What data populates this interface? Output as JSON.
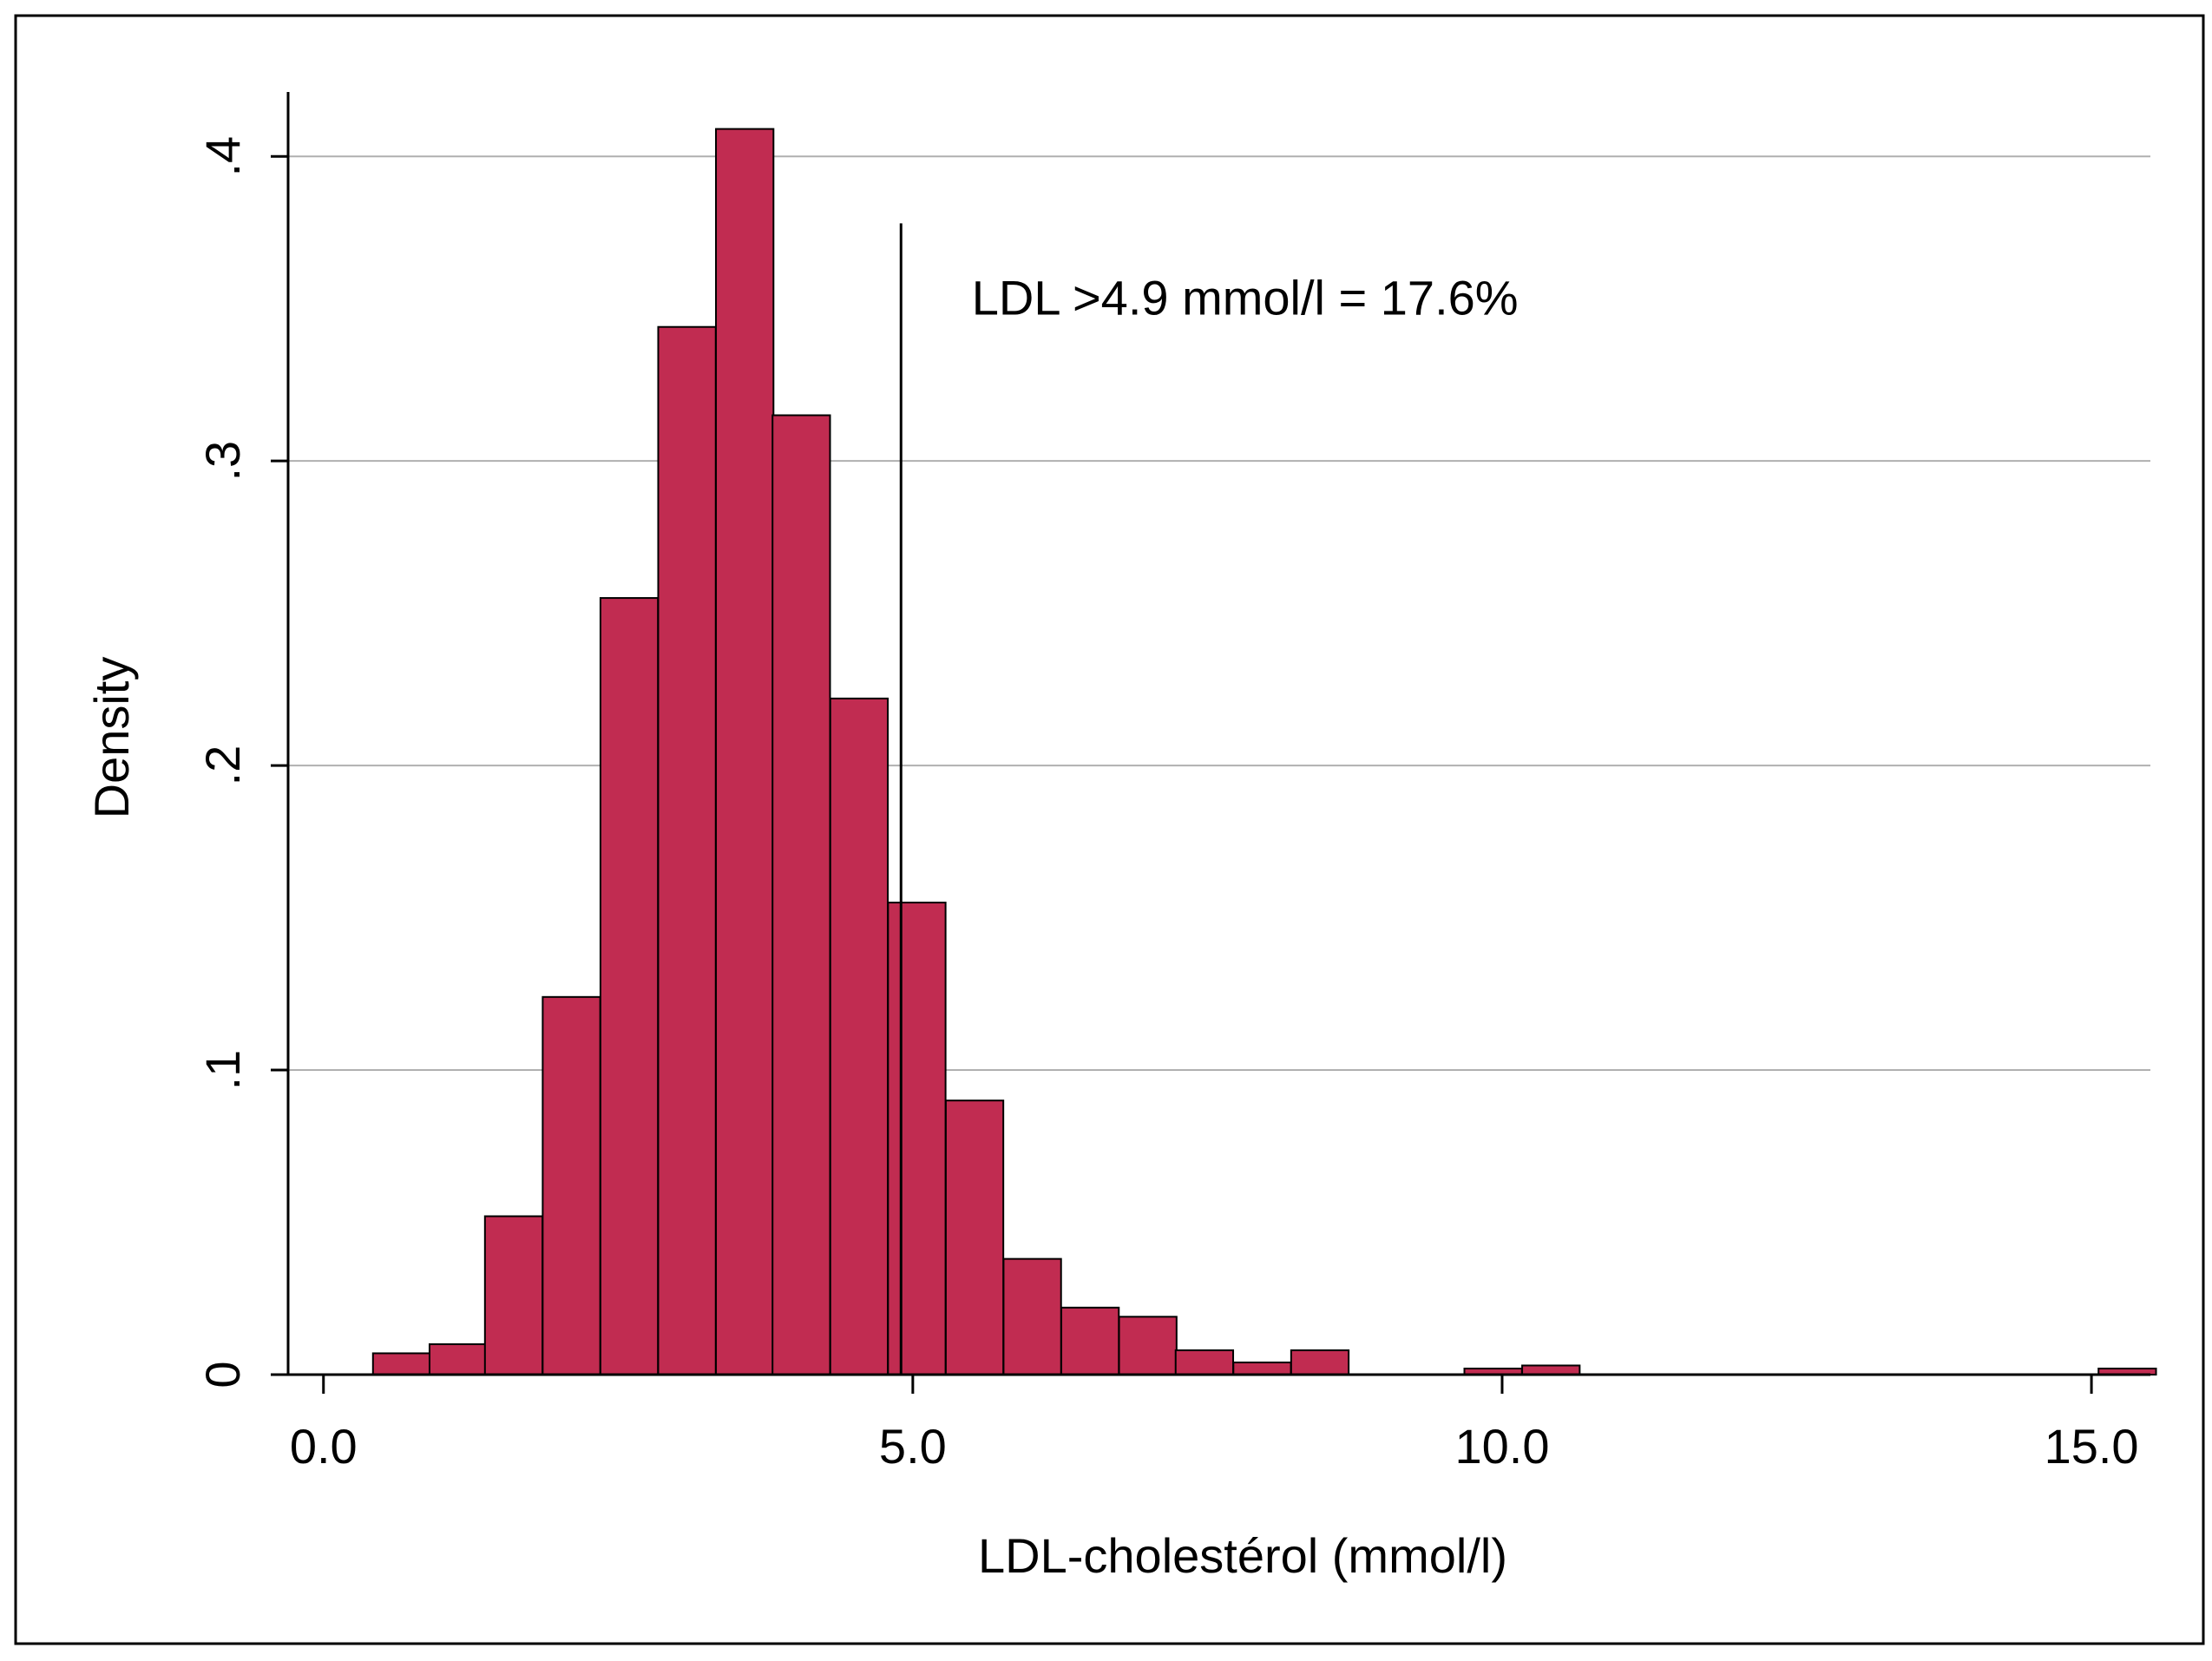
{
  "colors": {
    "bar_fill": "#c12c51",
    "bar_stroke": "#000000",
    "grid": "#b0b0b0",
    "axis": "#000000",
    "background": "#ffffff"
  },
  "chart_data": {
    "type": "bar",
    "subtype": "histogram",
    "xlabel": "LDL-cholestérol (mmol/l)",
    "ylabel": "Density",
    "xlim": [
      -0.3,
      15.5
    ],
    "ylim": [
      0,
      0.42
    ],
    "x_ticks": [
      0.0,
      5.0,
      10.0,
      15.0
    ],
    "x_tick_labels": [
      "0.0",
      "5.0",
      "10.0",
      "15.0"
    ],
    "y_ticks": [
      0,
      0.1,
      0.2,
      0.3,
      0.4
    ],
    "y_tick_labels": [
      "0",
      ".1",
      ".2",
      ".3",
      ".4"
    ],
    "grid": "horizontal",
    "bin_width": 0.488,
    "bin_starts": [
      0.42,
      0.9,
      1.37,
      1.86,
      2.35,
      2.84,
      3.33,
      3.81,
      4.3,
      4.79,
      5.28,
      5.77,
      6.26,
      6.75,
      7.23,
      7.72,
      8.21,
      9.68,
      10.17,
      15.06
    ],
    "values": [
      0.007,
      0.01,
      0.052,
      0.124,
      0.255,
      0.344,
      0.409,
      0.315,
      0.222,
      0.155,
      0.09,
      0.038,
      0.022,
      0.019,
      0.008,
      0.004,
      0.008,
      0.002,
      0.003,
      0.002
    ],
    "reference_line": {
      "x": 4.9,
      "y_top": 0.378
    },
    "annotation": {
      "text": "LDL >4.9 mmol/l = 17.6%",
      "x": 5.5,
      "y": 0.348
    }
  }
}
